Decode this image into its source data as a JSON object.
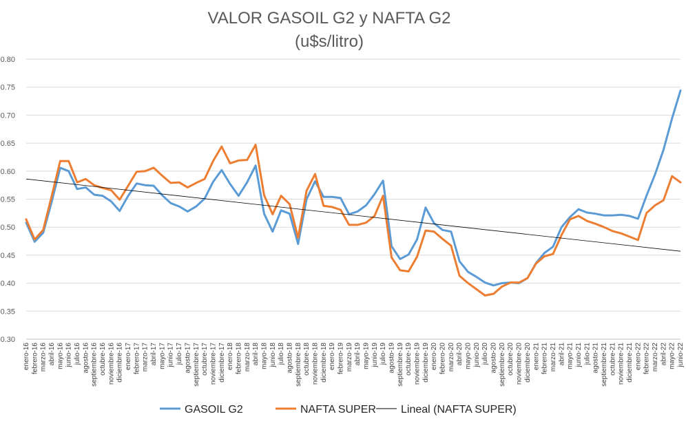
{
  "chart_data": {
    "type": "line",
    "title": "VALOR GASOIL G2 y NAFTA G2",
    "subtitle": "(u$s/litro)",
    "xlabel": "",
    "ylabel": "",
    "ylim": [
      0.3,
      0.8
    ],
    "y_ticks": [
      "0.30",
      "0.35",
      "0.40",
      "0.45",
      "0.50",
      "0.55",
      "0.60",
      "0.65",
      "0.70",
      "0.75",
      "0.80"
    ],
    "grid": "horizontal",
    "legend_position": "bottom",
    "categories": [
      "enero-16",
      "febrero-16",
      "marzo-16",
      "abril-16",
      "mayo-16",
      "junio-16",
      "julio-16",
      "agosto-16",
      "septiembre-16",
      "octubre-16",
      "noviembre-16",
      "diciembre-16",
      "enero-17",
      "febrero-17",
      "marzo-17",
      "abril-17",
      "mayo-17",
      "junio-17",
      "julio-17",
      "agosto-17",
      "septiembre-17",
      "octubre-17",
      "noviembre-17",
      "diciembre-17",
      "enero-18",
      "febrero-18",
      "marzo-18",
      "abril-18",
      "mayo-18",
      "junio-18",
      "julio-18",
      "agosto-18",
      "septiembre-18",
      "octubre-18",
      "noviembre-18",
      "diciembre-18",
      "enero-19",
      "febrero-19",
      "marzo-19",
      "abril-19",
      "mayo-19",
      "junio-19",
      "julio-19",
      "agosto-19",
      "septiembre-19",
      "octubre-19",
      "noviembre-19",
      "diciembre-19",
      "enero-20",
      "febrero-20",
      "marzo-20",
      "abril-20",
      "mayo-20",
      "junio-20",
      "julio-20",
      "agosto-20",
      "septiembre-20",
      "octubre-20",
      "noviembre-20",
      "diciembre-20",
      "enero-21",
      "febrero-21",
      "marzo-21",
      "abril-21",
      "mayo-21",
      "junio-21",
      "julio-21",
      "agosto-21",
      "septiembre-21",
      "octubre-21",
      "noviembre-21",
      "diciembre-21",
      "enero-22",
      "febrero-22",
      "marzo-22",
      "abril-22",
      "mayo-22",
      "junio-22"
    ],
    "series": [
      {
        "name": "GASOIL G2",
        "color": "#5b9bd5",
        "values": [
          0.508,
          0.474,
          0.49,
          0.545,
          0.606,
          0.6,
          0.568,
          0.571,
          0.558,
          0.556,
          0.546,
          0.529,
          0.556,
          0.578,
          0.575,
          0.574,
          0.557,
          0.543,
          0.537,
          0.528,
          0.537,
          0.551,
          0.581,
          0.602,
          0.577,
          0.556,
          0.58,
          0.61,
          0.524,
          0.492,
          0.53,
          0.524,
          0.47,
          0.55,
          0.582,
          0.554,
          0.554,
          0.552,
          0.523,
          0.528,
          0.539,
          0.559,
          0.583,
          0.466,
          0.443,
          0.451,
          0.478,
          0.535,
          0.507,
          0.495,
          0.492,
          0.439,
          0.42,
          0.411,
          0.401,
          0.396,
          0.4,
          0.401,
          0.4,
          0.409,
          0.436,
          0.454,
          0.465,
          0.5,
          0.518,
          0.532,
          0.526,
          0.524,
          0.521,
          0.521,
          0.522,
          0.52,
          0.515,
          0.556,
          0.594,
          0.638,
          0.694,
          0.744
        ]
      },
      {
        "name": "NAFTA SUPER",
        "color": "#ed7d31",
        "values": [
          0.514,
          0.478,
          0.495,
          0.555,
          0.618,
          0.618,
          0.58,
          0.586,
          0.575,
          0.57,
          0.566,
          0.549,
          0.574,
          0.599,
          0.6,
          0.606,
          0.592,
          0.579,
          0.58,
          0.571,
          0.579,
          0.586,
          0.618,
          0.644,
          0.614,
          0.619,
          0.62,
          0.647,
          0.557,
          0.523,
          0.556,
          0.541,
          0.481,
          0.565,
          0.595,
          0.538,
          0.536,
          0.531,
          0.504,
          0.504,
          0.508,
          0.52,
          0.556,
          0.446,
          0.423,
          0.421,
          0.447,
          0.494,
          0.492,
          0.479,
          0.467,
          0.413,
          0.4,
          0.389,
          0.378,
          0.381,
          0.394,
          0.401,
          0.401,
          0.409,
          0.435,
          0.448,
          0.452,
          0.486,
          0.514,
          0.52,
          0.511,
          0.506,
          0.5,
          0.493,
          0.489,
          0.483,
          0.477,
          0.525,
          0.539,
          0.548,
          0.591,
          0.58
        ]
      }
    ],
    "trendline": {
      "name": "Lineal (NAFTA SUPER)",
      "color": "#000000",
      "start": 0.586,
      "end": 0.457
    }
  }
}
